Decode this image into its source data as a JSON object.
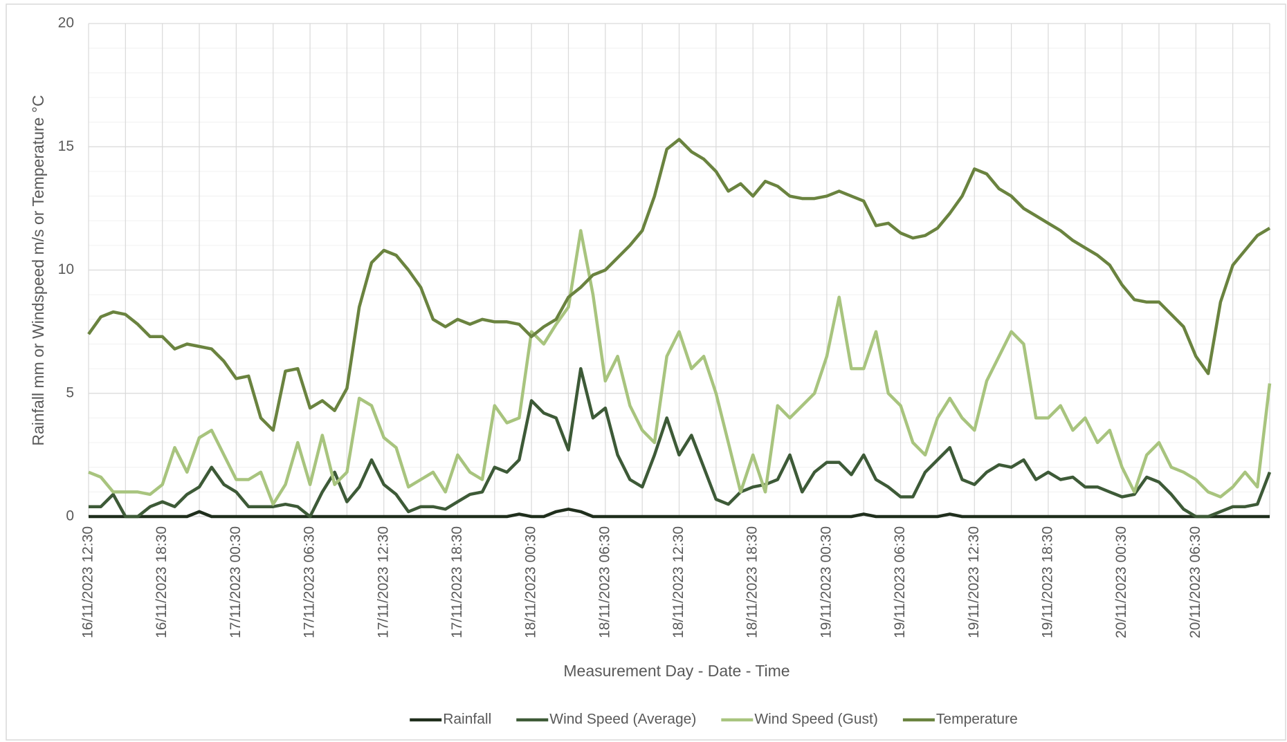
{
  "chart_data": {
    "type": "line",
    "x_label": "Measurement Day - Date - Time",
    "y_label": "Rainfall mm or  Windspeed m/s or Temperature °C",
    "categories": [
      "16/11/2023 12:30",
      null,
      null,
      null,
      null,
      null,
      "16/11/2023 18:30",
      null,
      null,
      null,
      null,
      null,
      "17/11/2023 00:30",
      null,
      null,
      null,
      null,
      null,
      "17/11/2023 06:30",
      null,
      null,
      null,
      null,
      null,
      "17/11/2023 12:30",
      null,
      null,
      null,
      null,
      null,
      "17/11/2023 18:30",
      null,
      null,
      null,
      null,
      null,
      "18/11/2023 00:30",
      null,
      null,
      null,
      null,
      null,
      "18/11/2023 06:30",
      null,
      null,
      null,
      null,
      null,
      "18/11/2023 12:30",
      null,
      null,
      null,
      null,
      null,
      "18/11/2023 18:30",
      null,
      null,
      null,
      null,
      null,
      "19/11/2023 00:30",
      null,
      null,
      null,
      null,
      null,
      "19/11/2023 06:30",
      null,
      null,
      null,
      null,
      null,
      "19/11/2023 12:30",
      null,
      null,
      null,
      null,
      null,
      "19/11/2023 18:30",
      null,
      null,
      null,
      null,
      null,
      "20/11/2023 00:30",
      null,
      null,
      null,
      null,
      null,
      "20/11/2023 06:30",
      null,
      null,
      null,
      null,
      null,
      null
    ],
    "series": [
      {
        "name": "Rainfall",
        "color": "#1f2e1c",
        "values": [
          0,
          0,
          0,
          0,
          0,
          0,
          0,
          0,
          0,
          0.2,
          0,
          0,
          0,
          0,
          0,
          0,
          0,
          0,
          0,
          0,
          0,
          0,
          0,
          0,
          0,
          0,
          0,
          0,
          0,
          0,
          0,
          0,
          0,
          0,
          0,
          0.1,
          0,
          0,
          0.2,
          0.3,
          0.2,
          0,
          0,
          0,
          0,
          0,
          0,
          0,
          0,
          0,
          0,
          0,
          0,
          0,
          0,
          0,
          0,
          0,
          0,
          0,
          0,
          0,
          0,
          0.1,
          0,
          0,
          0,
          0,
          0,
          0,
          0.1,
          0,
          0,
          0,
          0,
          0,
          0,
          0,
          0,
          0,
          0,
          0,
          0,
          0,
          0,
          0,
          0,
          0,
          0,
          0,
          0,
          0,
          0,
          0,
          0,
          0,
          0
        ]
      },
      {
        "name": "Wind Speed (Average)",
        "color": "#3d5a37",
        "values": [
          0.4,
          0.4,
          0.9,
          0,
          0,
          0.4,
          0.6,
          0.4,
          0.9,
          1.2,
          2.0,
          1.3,
          1.0,
          0.4,
          0.4,
          0.4,
          0.5,
          0.4,
          0,
          1.0,
          1.8,
          0.6,
          1.2,
          2.3,
          1.3,
          0.9,
          0.2,
          0.4,
          0.4,
          0.3,
          0.6,
          0.9,
          1.0,
          2.0,
          1.8,
          2.3,
          4.7,
          4.2,
          4.0,
          2.7,
          6.0,
          4.0,
          4.4,
          2.5,
          1.5,
          1.2,
          2.5,
          4.0,
          2.5,
          3.3,
          2.0,
          0.7,
          0.5,
          1.0,
          1.2,
          1.3,
          1.5,
          2.5,
          1.0,
          1.8,
          2.2,
          2.2,
          1.7,
          2.5,
          1.5,
          1.2,
          0.8,
          0.8,
          1.8,
          2.3,
          2.8,
          1.5,
          1.3,
          1.8,
          2.1,
          2.0,
          2.3,
          1.5,
          1.8,
          1.5,
          1.6,
          1.2,
          1.2,
          1.0,
          0.8,
          0.9,
          1.6,
          1.4,
          0.9,
          0.3,
          0,
          0,
          0.2,
          0.4,
          0.4,
          0.5,
          1.8
        ]
      },
      {
        "name": "Wind Speed (Gust)",
        "color": "#a8c47e",
        "values": [
          1.8,
          1.6,
          1.0,
          1.0,
          1.0,
          0.9,
          1.3,
          2.8,
          1.8,
          3.2,
          3.5,
          2.5,
          1.5,
          1.5,
          1.8,
          0.5,
          1.3,
          3.0,
          1.3,
          3.3,
          1.3,
          1.8,
          4.8,
          4.5,
          3.2,
          2.8,
          1.2,
          1.5,
          1.8,
          1.0,
          2.5,
          1.8,
          1.5,
          4.5,
          3.8,
          4.0,
          7.5,
          7.0,
          7.8,
          8.5,
          11.6,
          9.0,
          5.5,
          6.5,
          4.5,
          3.5,
          3.0,
          6.5,
          7.5,
          6.0,
          6.5,
          5.0,
          3.0,
          1.0,
          2.5,
          1.0,
          4.5,
          4.0,
          4.5,
          5.0,
          6.5,
          8.9,
          6.0,
          6.0,
          7.5,
          5.0,
          4.5,
          3.0,
          2.5,
          4.0,
          4.8,
          4.0,
          3.5,
          5.5,
          6.5,
          7.5,
          7.0,
          4.0,
          4.0,
          4.5,
          3.5,
          4.0,
          3.0,
          3.5,
          2.0,
          1.0,
          2.5,
          3.0,
          2.0,
          1.8,
          1.5,
          1.0,
          0.8,
          1.2,
          1.8,
          1.2,
          5.4
        ]
      },
      {
        "name": "Temperature",
        "color": "#6a833f",
        "values": [
          7.4,
          8.1,
          8.3,
          8.2,
          7.8,
          7.3,
          7.3,
          6.8,
          7.0,
          6.9,
          6.8,
          6.3,
          5.6,
          5.7,
          4.0,
          3.5,
          5.9,
          6.0,
          4.4,
          4.7,
          4.3,
          5.2,
          8.5,
          10.3,
          10.8,
          10.6,
          10.0,
          9.3,
          8.0,
          7.7,
          8.0,
          7.8,
          8.0,
          7.9,
          7.9,
          7.8,
          7.3,
          7.7,
          8.0,
          8.9,
          9.3,
          9.8,
          10.0,
          10.5,
          11.0,
          11.6,
          13.0,
          14.9,
          15.3,
          14.8,
          14.5,
          14.0,
          13.2,
          13.5,
          13.0,
          13.6,
          13.4,
          13.0,
          12.9,
          12.9,
          13.0,
          13.2,
          13.0,
          12.8,
          11.8,
          11.9,
          11.5,
          11.3,
          11.4,
          11.7,
          12.3,
          13.0,
          14.1,
          13.9,
          13.3,
          13.0,
          12.5,
          12.2,
          11.9,
          11.6,
          11.2,
          10.9,
          10.6,
          10.2,
          9.4,
          8.8,
          8.7,
          8.7,
          8.2,
          7.7,
          6.5,
          5.8,
          8.7,
          10.2,
          10.8,
          11.4,
          11.7
        ]
      }
    ],
    "ylim": [
      0,
      20
    ],
    "yticks": [
      0,
      5,
      10,
      15,
      20
    ],
    "grid": true,
    "legend": "bottom"
  }
}
